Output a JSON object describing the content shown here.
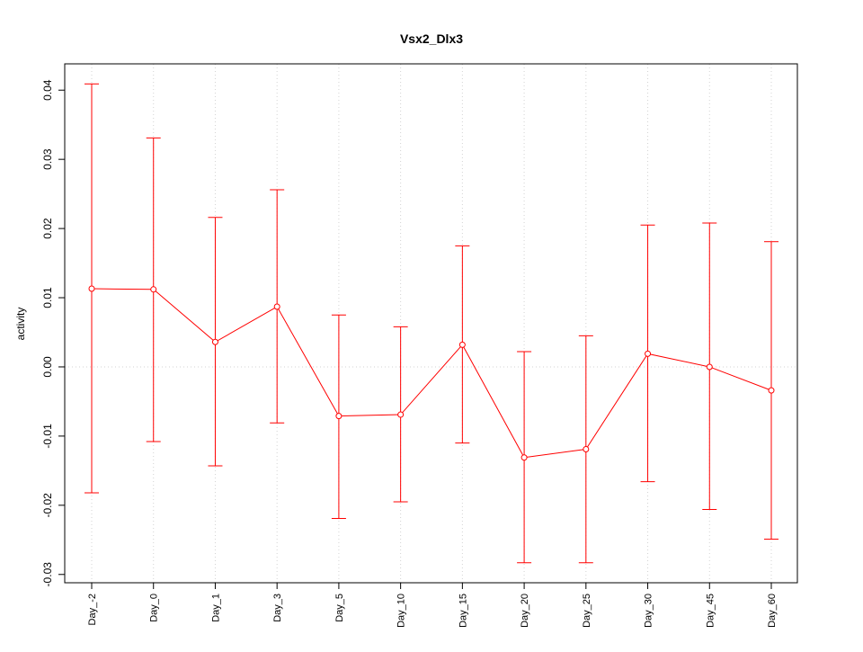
{
  "chart_data": {
    "type": "line",
    "title": "Vsx2_Dlx3",
    "xlabel": "",
    "ylabel": "activity",
    "categories": [
      "Day_-2",
      "Day_0",
      "Day_1",
      "Day_3",
      "Day_5",
      "Day_10",
      "Day_15",
      "Day_20",
      "Day_25",
      "Day_30",
      "Day_45",
      "Day_60"
    ],
    "series": [
      {
        "name": "activity",
        "color": "#ff0000",
        "values": [
          0.0113,
          0.0112,
          0.0036,
          0.0087,
          -0.0071,
          -0.0069,
          0.0032,
          -0.0131,
          -0.0119,
          0.0019,
          0.0,
          -0.0034
        ],
        "upper": [
          0.0409,
          0.0331,
          0.0216,
          0.0256,
          0.0075,
          0.0058,
          0.0175,
          0.0022,
          0.0045,
          0.0205,
          0.0208,
          0.0181
        ],
        "lower": [
          -0.0182,
          -0.0108,
          -0.0143,
          -0.0081,
          -0.0219,
          -0.0195,
          -0.011,
          -0.0283,
          -0.0283,
          -0.0166,
          -0.0206,
          -0.0249
        ]
      }
    ],
    "yticks": [
      -0.03,
      -0.02,
      -0.01,
      0.0,
      0.01,
      0.02,
      0.03,
      0.04
    ],
    "ytick_labels": [
      "-0.03",
      "-0.02",
      "-0.01",
      "0.00",
      "0.01",
      "0.02",
      "0.03",
      "0.04"
    ],
    "ylim": [
      -0.0312,
      0.0438
    ],
    "grid": true
  }
}
